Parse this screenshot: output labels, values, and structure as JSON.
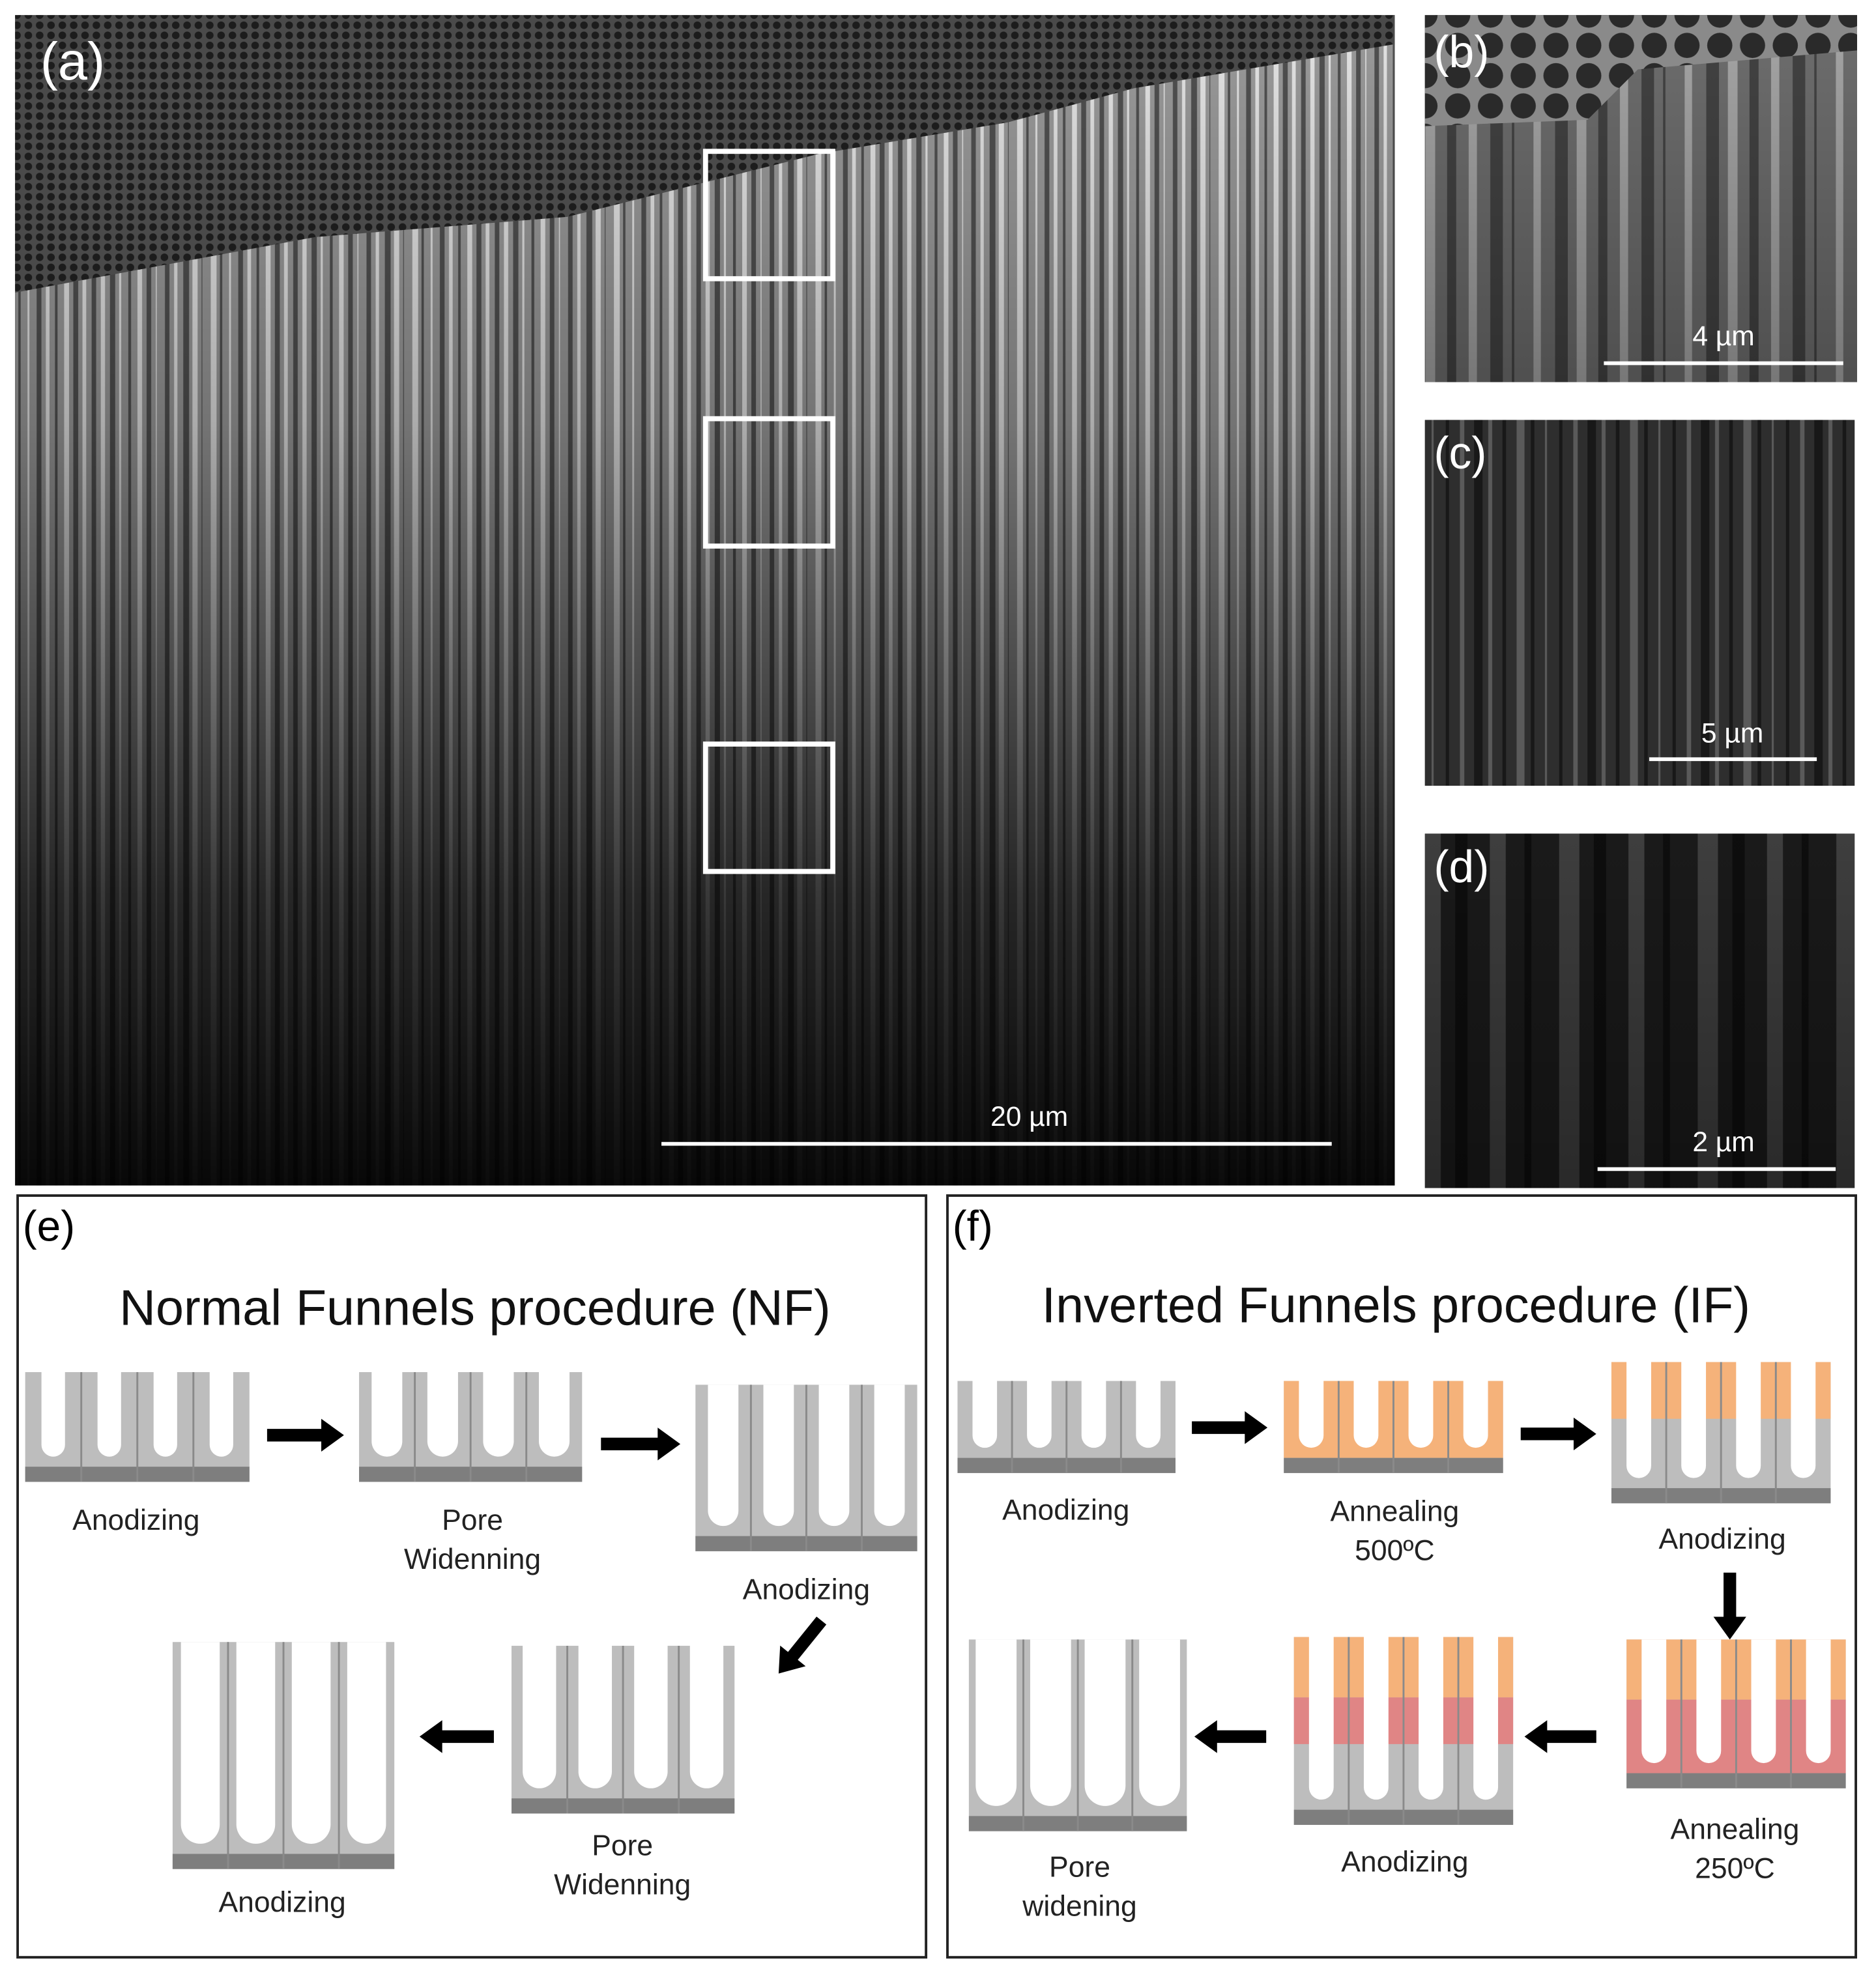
{
  "panels": [
    {
      "label": "(a)",
      "scale_bar": "20 µm"
    },
    {
      "label": "(b)",
      "scale_bar": "4 µm"
    },
    {
      "label": "(c)",
      "scale_bar": "5 µm"
    },
    {
      "label": "(d)",
      "scale_bar": "2 µm"
    }
  ],
  "schemes": [
    {
      "label": "(e)",
      "title": "Normal Funnels procedure (NF)",
      "steps": [
        {
          "caption": [
            "Anodizing"
          ]
        },
        {
          "caption": [
            "Pore",
            "Widenning"
          ]
        },
        {
          "caption": [
            "Anodizing"
          ]
        },
        {
          "caption": [
            "Pore",
            "Widenning"
          ]
        },
        {
          "caption": [
            "Anodizing"
          ]
        }
      ]
    },
    {
      "label": "(f)",
      "title": "Inverted Funnels procedure (IF)",
      "steps": [
        {
          "caption": [
            "Anodizing"
          ]
        },
        {
          "caption": [
            "Annealing",
            "500ºC"
          ]
        },
        {
          "caption": [
            "Anodizing"
          ]
        },
        {
          "caption": [
            "Annealing",
            "250ºC"
          ]
        },
        {
          "caption": [
            "Anodizing"
          ]
        },
        {
          "caption": [
            "Pore",
            "widening"
          ]
        }
      ]
    }
  ]
}
